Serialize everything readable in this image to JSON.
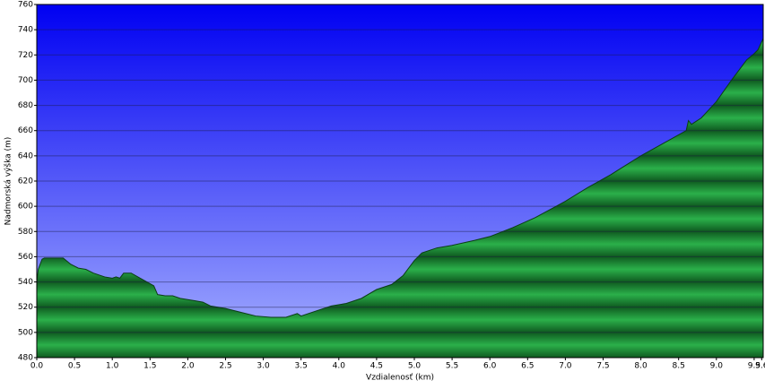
{
  "chart_data": {
    "type": "area",
    "x_label": "Vzdialenosť  (km)",
    "y_label": "Nadmorská výška (m)",
    "color": "#2bb04a",
    "grid": true,
    "x": [
      0,
      0.02,
      0.07,
      0.1,
      0.35,
      0.45,
      0.55,
      0.65,
      0.75,
      0.9,
      1.0,
      1.05,
      1.1,
      1.15,
      1.25,
      1.4,
      1.55,
      1.6,
      1.7,
      1.8,
      1.9,
      2.0,
      2.1,
      2.2,
      2.3,
      2.5,
      2.7,
      2.9,
      3.1,
      3.3,
      3.45,
      3.5,
      3.7,
      3.9,
      4.1,
      4.3,
      4.5,
      4.7,
      4.85,
      5.0,
      5.1,
      5.3,
      5.5,
      5.8,
      6.0,
      6.3,
      6.6,
      7.0,
      7.3,
      7.6,
      8.0,
      8.3,
      8.6,
      8.63,
      8.67,
      8.8,
      9.0,
      9.2,
      9.4,
      9.5,
      9.55,
      9.62
    ],
    "values": [
      540,
      550,
      558,
      559,
      559,
      554,
      551,
      550,
      547,
      544,
      543,
      544,
      543,
      547,
      547,
      542,
      537,
      530,
      529,
      529,
      527,
      526,
      525,
      524,
      521,
      519,
      516,
      513,
      512,
      512,
      515,
      513,
      517,
      521,
      523,
      527,
      534,
      538,
      545,
      557,
      563,
      567,
      569,
      573,
      576,
      583,
      591,
      604,
      615,
      625,
      640,
      650,
      660,
      668,
      665,
      670,
      683,
      700,
      716,
      721,
      724,
      733
    ],
    "xlim": [
      0,
      9.62
    ],
    "ylim": [
      480,
      760
    ],
    "xticks": [
      {
        "value": 0,
        "label": "0.0"
      },
      0.5,
      {
        "value": 1,
        "label": "1.0"
      },
      1.5,
      {
        "value": 2,
        "label": "2.0"
      },
      2.5,
      {
        "value": 3,
        "label": "3.0"
      },
      3.5,
      {
        "value": 4,
        "label": "4.0"
      },
      4.5,
      {
        "value": 5,
        "label": "5.0"
      },
      5.5,
      {
        "value": 6,
        "label": "6.0"
      },
      6.5,
      {
        "value": 7,
        "label": "7.0"
      },
      7.5,
      {
        "value": 8,
        "label": "8.0"
      },
      8.5,
      {
        "value": 9,
        "label": "9.0"
      },
      9.5,
      9.6
    ],
    "yticks": [
      480,
      500,
      520,
      540,
      560,
      580,
      600,
      620,
      640,
      660,
      680,
      700,
      720,
      740,
      760
    ]
  }
}
